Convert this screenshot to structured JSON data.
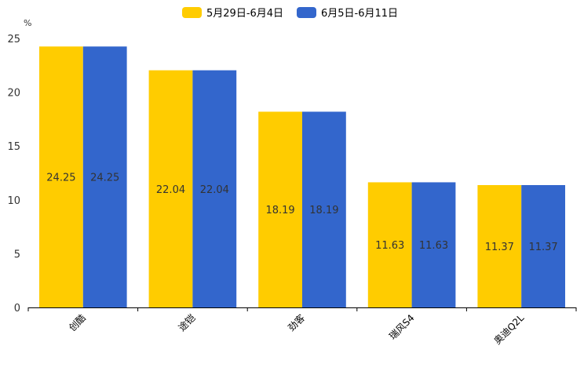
{
  "chart_data": {
    "type": "bar",
    "title": "",
    "xlabel": "",
    "ylabel": "%",
    "ylim": [
      0,
      25
    ],
    "yticks": [
      0,
      5,
      10,
      15,
      20,
      25
    ],
    "grid": false,
    "legend_position": "top-center",
    "categories": [
      "创酷",
      "途铠",
      "劲客",
      "瑞风S4",
      "奥迪Q2L"
    ],
    "series": [
      {
        "name": "5月29日-6月4日",
        "color": "#FFCC00",
        "values": [
          24.25,
          22.04,
          18.19,
          11.63,
          11.37
        ]
      },
      {
        "name": "6月5日-6月11日",
        "color": "#3366CC",
        "values": [
          24.25,
          22.04,
          18.19,
          11.63,
          11.37
        ]
      }
    ]
  }
}
